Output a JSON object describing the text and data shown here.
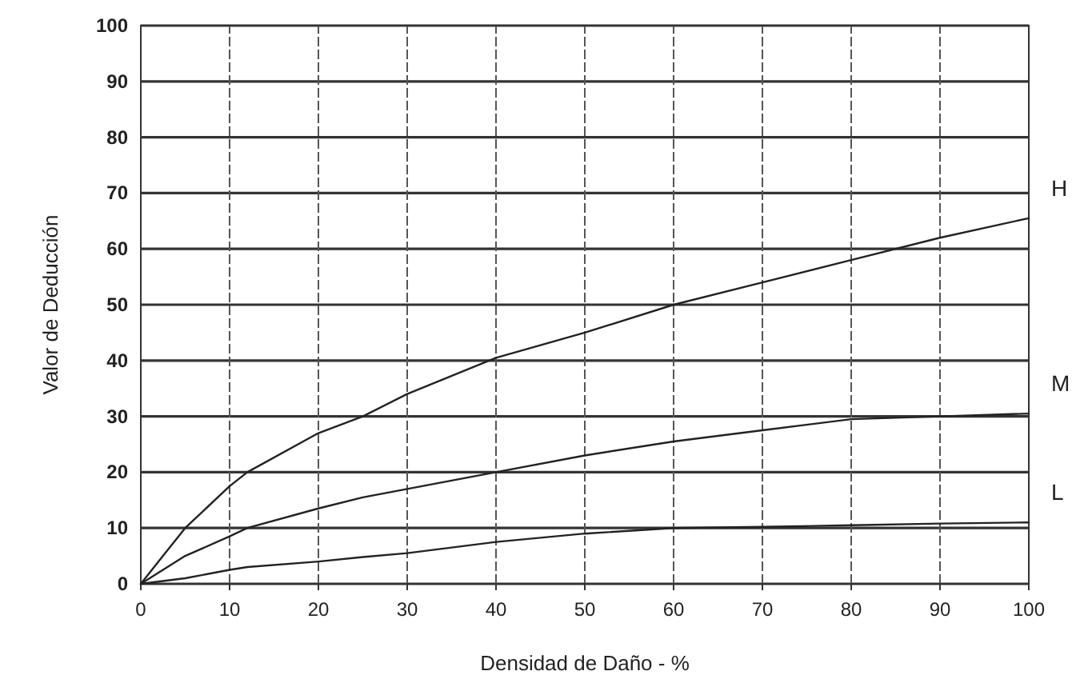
{
  "chart_data": {
    "type": "line",
    "xlabel": "Densidad de Daño - %",
    "ylabel": "Valor de Deducción",
    "x": [
      0,
      2.5,
      5,
      10,
      12,
      20,
      25,
      30,
      40,
      50,
      60,
      70,
      80,
      90,
      100
    ],
    "series": [
      {
        "name": "H",
        "color": "#222222",
        "values": [
          0,
          5,
          10,
          17.5,
          20,
          27,
          30,
          34,
          40.5,
          45,
          50,
          54,
          58,
          62,
          65.5
        ]
      },
      {
        "name": "M",
        "color": "#222222",
        "values": [
          0,
          2.5,
          5,
          8.5,
          10,
          13.5,
          15.5,
          17,
          20,
          23,
          25.5,
          27.5,
          29.5,
          30,
          30.5
        ]
      },
      {
        "name": "L",
        "color": "#222222",
        "values": [
          0,
          0.5,
          1,
          2.5,
          3,
          4,
          4.8,
          5.5,
          7.5,
          9,
          10,
          10.2,
          10.5,
          10.8,
          11
        ]
      }
    ],
    "xlim": [
      0,
      100
    ],
    "ylim": [
      0,
      100
    ],
    "xticks": [
      0,
      10,
      20,
      30,
      40,
      50,
      60,
      70,
      80,
      90,
      100
    ],
    "yticks": [
      0,
      10,
      20,
      30,
      40,
      50,
      60,
      70,
      80,
      90,
      100
    ],
    "grid": true,
    "marker": "none",
    "line_style": "solid"
  }
}
